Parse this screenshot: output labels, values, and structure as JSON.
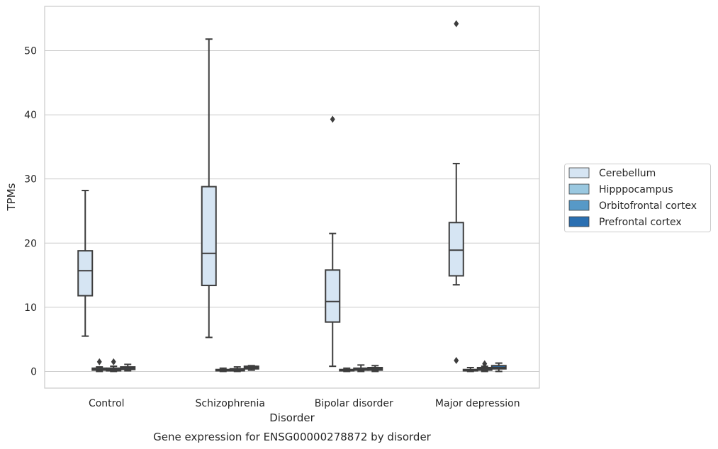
{
  "chart_data": {
    "type": "box",
    "title": "Gene expression for ENSG00000278872 by disorder",
    "xlabel": "Disorder",
    "ylabel": "TPMs",
    "ylim": [
      -2.6,
      56.9
    ],
    "yticks": [
      0,
      10,
      20,
      30,
      40,
      50
    ],
    "grid": "horizontal",
    "legend_position": "right",
    "categories": [
      "Control",
      "Schizophrenia",
      "Bipolar disorder",
      "Major depression"
    ],
    "series": [
      {
        "name": "Cerebellum",
        "color": "#d6e5f3",
        "boxes": [
          {
            "whisker_low": 5.5,
            "q1": 11.8,
            "median": 15.7,
            "q3": 18.8,
            "whisker_high": 28.2,
            "outliers": []
          },
          {
            "whisker_low": 5.3,
            "q1": 13.4,
            "median": 18.4,
            "q3": 28.8,
            "whisker_high": 51.8,
            "outliers": []
          },
          {
            "whisker_low": 0.8,
            "q1": 7.7,
            "median": 10.9,
            "q3": 15.8,
            "whisker_high": 21.5,
            "outliers": [
              39.3
            ]
          },
          {
            "whisker_low": 13.5,
            "q1": 14.9,
            "median": 18.9,
            "q3": 23.2,
            "whisker_high": 32.4,
            "outliers": [
              54.2,
              1.7
            ]
          }
        ]
      },
      {
        "name": "Hipppocampus",
        "color": "#9ac8e0",
        "boxes": [
          {
            "whisker_low": 0.0,
            "q1": 0.2,
            "median": 0.3,
            "q3": 0.5,
            "whisker_high": 0.7,
            "outliers": [
              1.5
            ]
          },
          {
            "whisker_low": 0.0,
            "q1": 0.1,
            "median": 0.2,
            "q3": 0.3,
            "whisker_high": 0.5,
            "outliers": []
          },
          {
            "whisker_low": 0.0,
            "q1": 0.1,
            "median": 0.2,
            "q3": 0.3,
            "whisker_high": 0.5,
            "outliers": []
          },
          {
            "whisker_low": 0.0,
            "q1": 0.1,
            "median": 0.2,
            "q3": 0.3,
            "whisker_high": 0.6,
            "outliers": []
          }
        ]
      },
      {
        "name": "Orbitofrontal cortex",
        "color": "#5799c7",
        "boxes": [
          {
            "whisker_low": 0.0,
            "q1": 0.1,
            "median": 0.3,
            "q3": 0.5,
            "whisker_high": 0.8,
            "outliers": [
              1.5
            ]
          },
          {
            "whisker_low": 0.0,
            "q1": 0.1,
            "median": 0.2,
            "q3": 0.4,
            "whisker_high": 0.7,
            "outliers": []
          },
          {
            "whisker_low": 0.0,
            "q1": 0.2,
            "median": 0.3,
            "q3": 0.5,
            "whisker_high": 1.0,
            "outliers": []
          },
          {
            "whisker_low": 0.0,
            "q1": 0.2,
            "median": 0.4,
            "q3": 0.6,
            "whisker_high": 0.8,
            "outliers": [
              1.2
            ]
          }
        ]
      },
      {
        "name": "Prefrontal cortex",
        "color": "#2a6fb1",
        "boxes": [
          {
            "whisker_low": 0.1,
            "q1": 0.3,
            "median": 0.5,
            "q3": 0.7,
            "whisker_high": 1.1,
            "outliers": []
          },
          {
            "whisker_low": 0.2,
            "q1": 0.4,
            "median": 0.6,
            "q3": 0.8,
            "whisker_high": 0.9,
            "outliers": []
          },
          {
            "whisker_low": 0.0,
            "q1": 0.2,
            "median": 0.4,
            "q3": 0.6,
            "whisker_high": 0.9,
            "outliers": []
          },
          {
            "whisker_low": 0.0,
            "q1": 0.4,
            "median": 0.6,
            "q3": 0.9,
            "whisker_high": 1.3,
            "outliers": []
          }
        ]
      }
    ]
  }
}
